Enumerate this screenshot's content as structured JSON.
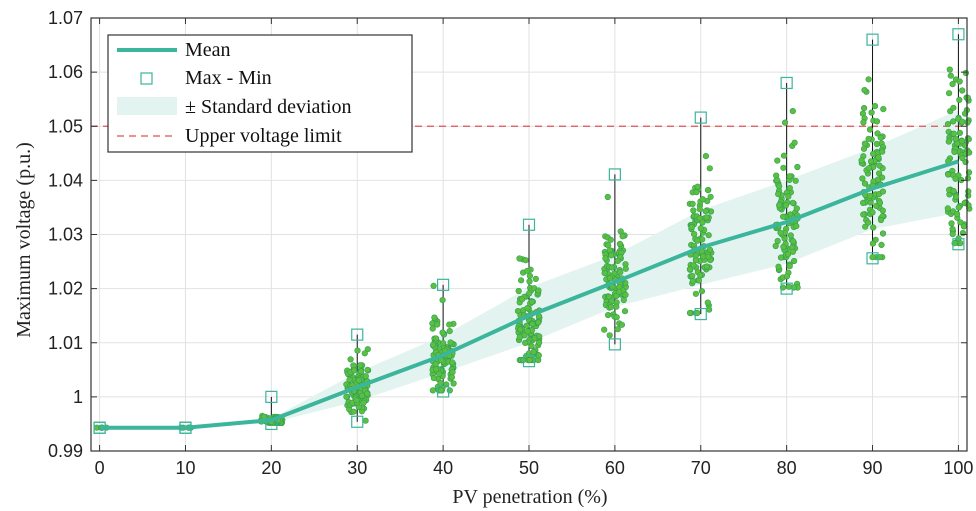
{
  "chart_data": {
    "type": "line",
    "xlabel": "PV penetration (%)",
    "ylabel": "Maximum voltage (p.u.)",
    "xlim": [
      -1,
      101
    ],
    "ylim": [
      0.99,
      1.07
    ],
    "xticks": [
      0,
      10,
      20,
      30,
      40,
      50,
      60,
      70,
      80,
      90,
      100
    ],
    "xtick_labels": [
      "0",
      "10",
      "20",
      "30",
      "40",
      "50",
      "60",
      "70",
      "80",
      "90",
      "100"
    ],
    "yticks": [
      0.99,
      1.0,
      1.01,
      1.02,
      1.03,
      1.04,
      1.05,
      1.06,
      1.07
    ],
    "ytick_labels": [
      "0.99",
      "1",
      "1.01",
      "1.02",
      "1.03",
      "1.04",
      "1.05",
      "1.06",
      "1.07"
    ],
    "grid": true,
    "legend_position": "top-left",
    "legend": [
      "Mean",
      "Max - Min",
      "± Standard deviation",
      "Upper voltage limit"
    ],
    "x": [
      0,
      10,
      20,
      30,
      40,
      50,
      60,
      70,
      80,
      90,
      100
    ],
    "mean": [
      0.9943,
      0.9943,
      0.9957,
      1.0018,
      1.0077,
      1.015,
      1.0212,
      1.0276,
      1.0323,
      1.0385,
      1.0435
    ],
    "std_upper": [
      0.9943,
      0.9943,
      0.996,
      1.0045,
      1.0113,
      1.0202,
      1.0262,
      1.0345,
      1.04,
      1.046,
      1.053
    ],
    "std_lower": [
      0.9943,
      0.9943,
      0.9952,
      0.9992,
      1.0045,
      1.01,
      1.0166,
      1.0207,
      1.0246,
      1.031,
      1.034
    ],
    "max": [
      0.9943,
      0.9943,
      1.0,
      1.0115,
      1.0207,
      1.0318,
      1.0411,
      1.0516,
      1.058,
      1.066,
      1.067
    ],
    "min": [
      0.9943,
      0.9943,
      0.995,
      0.9954,
      1.001,
      1.0066,
      1.0097,
      1.0153,
      1.02,
      1.0256,
      1.0282
    ],
    "upper_voltage_limit": 1.05,
    "samples_per_level": 100,
    "colors": {
      "mean": "#3bb59b",
      "band": "#e3f4f0",
      "marker_face": "#5cbf3e",
      "marker_edge": "#2e9e5a",
      "square": "#3bb59b",
      "limit": "#e05050",
      "grid": "#e2e2e2",
      "axis": "#333333"
    }
  }
}
